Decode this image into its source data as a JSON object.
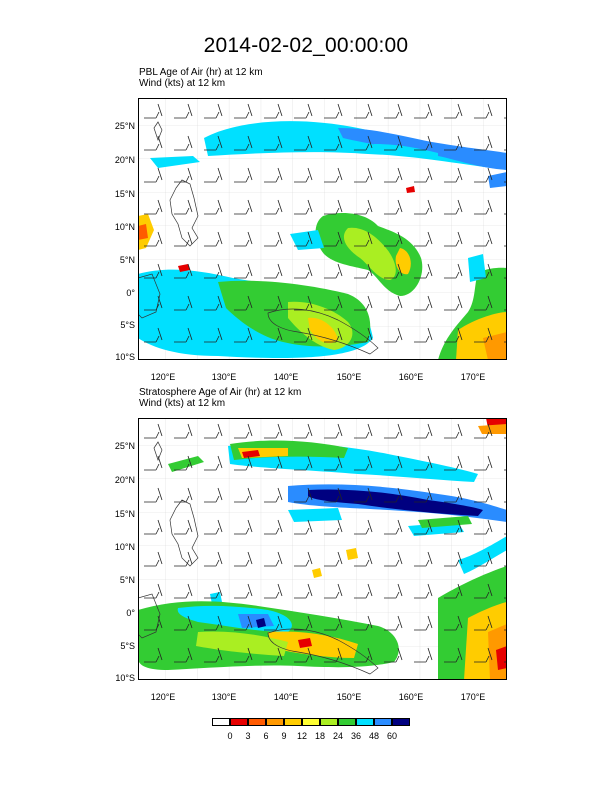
{
  "figure": {
    "title": "2014-02-02_00:00:00"
  },
  "panels": [
    {
      "field_label": "PBL Age of Air   (hr)     at   12 km",
      "wind_label": "Wind    (kts)     at   12 km"
    },
    {
      "field_label": "Stratosphere Age of Air   (hr)     at   12 km",
      "wind_label": "Wind    (kts)     at   12 km"
    }
  ],
  "axes": {
    "lat_ticks": [
      "25°N",
      "20°N",
      "15°N",
      "10°N",
      "5°N",
      "0°",
      "5°S",
      "10°S"
    ],
    "lon_ticks": [
      "120°E",
      "130°E",
      "140°E",
      "150°E",
      "160°E",
      "170°E"
    ]
  },
  "colorbar": {
    "labels": [
      "0",
      "3",
      "6",
      "9",
      "12",
      "18",
      "24",
      "36",
      "48",
      "60"
    ],
    "colors": [
      "#ffffff",
      "#e60000",
      "#ff5a00",
      "#ff9900",
      "#ffcc00",
      "#ffff33",
      "#aaee22",
      "#33cc33",
      "#00e0ff",
      "#2a8cff",
      "#000080"
    ]
  },
  "chart_data": {
    "type": "heatmap",
    "title": "2014-02-02_00:00:00",
    "x_range_deg": [
      116,
      173
    ],
    "y_range_deg": [
      -10,
      29
    ],
    "x_ticks": [
      120,
      130,
      140,
      150,
      160,
      170
    ],
    "y_ticks": [
      25,
      20,
      15,
      10,
      5,
      0,
      -5,
      -10
    ],
    "levels_hr": [
      0,
      3,
      6,
      9,
      12,
      18,
      24,
      36,
      48,
      60
    ],
    "panels": [
      {
        "field": "PBL Age of Air",
        "units": "hr",
        "level": "12 km"
      },
      {
        "field": "Stratosphere Age of Air",
        "units": "hr",
        "level": "12 km"
      }
    ],
    "overlay": {
      "field": "Wind",
      "units": "kts",
      "level": "12 km",
      "style": "barbs"
    }
  }
}
